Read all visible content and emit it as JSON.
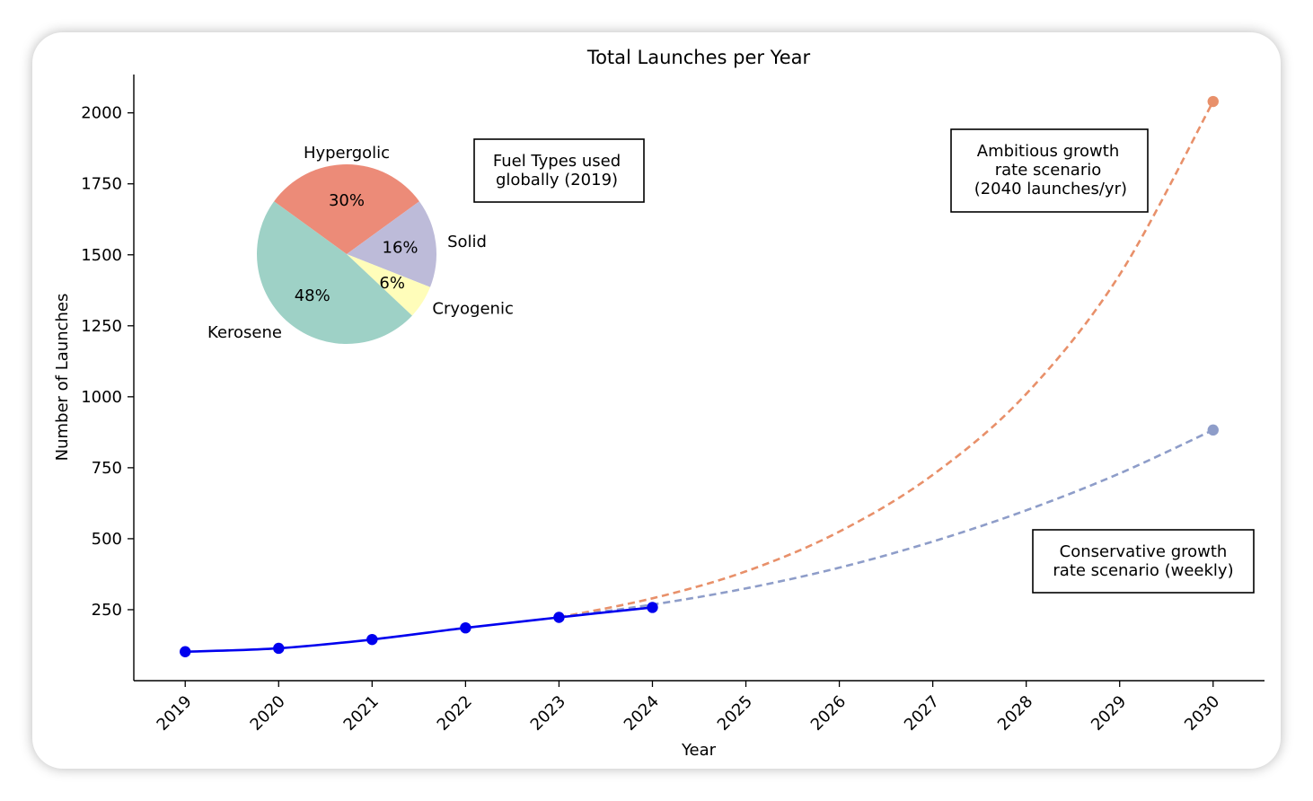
{
  "chart_data": [
    {
      "type": "line",
      "title": "Total Launches per Year",
      "xlabel": "Year",
      "ylabel": "Number of Launches",
      "x_ticks": [
        "2019",
        "2020",
        "2021",
        "2022",
        "2023",
        "2024",
        "2025",
        "2026",
        "2027",
        "2028",
        "2029",
        "2030"
      ],
      "y_ticks": [
        250,
        500,
        750,
        1000,
        1250,
        1500,
        1750,
        2000
      ],
      "xlim": [
        2018.45,
        2030.55
      ],
      "ylim": [
        0,
        2135
      ],
      "series": [
        {
          "style": "solid",
          "color": "#0000ee",
          "x": [
            2019,
            2020,
            2021,
            2022,
            2023,
            2024
          ],
          "values": [
            102,
            114,
            145,
            186,
            223,
            258
          ]
        },
        {
          "style": "dashed",
          "color": "#e8906a",
          "x": [
            2023,
            2024,
            2025,
            2026,
            2027,
            2028,
            2029,
            2030
          ],
          "values": [
            223,
            290,
            385,
            525,
            725,
            1010,
            1430,
            2040
          ]
        },
        {
          "style": "dashed",
          "color": "#8e9dc9",
          "x": [
            2023,
            2024,
            2025,
            2026,
            2027,
            2028,
            2029,
            2030
          ],
          "values": [
            223,
            268,
            325,
            398,
            490,
            600,
            730,
            883
          ]
        }
      ],
      "annotations": [
        {
          "id": "ambitious",
          "text": "Ambitious growth\nrate scenario\n (2040 launches/yr)"
        },
        {
          "id": "conservative",
          "text": "Conservative growth\nrate scenario (weekly)"
        }
      ],
      "grid": false,
      "legend": "none"
    },
    {
      "type": "pie",
      "title": "Fuel Types used\nglobally (2019)",
      "slices": [
        {
          "label": "Hypergolic",
          "value": 30,
          "pct": "30%",
          "color": "#ec8b78"
        },
        {
          "label": "Solid",
          "value": 16,
          "pct": "16%",
          "color": "#bdbbd9"
        },
        {
          "label": "Cryogenic",
          "value": 6,
          "pct": "6%",
          "color": "#fffdba"
        },
        {
          "label": "Kerosene",
          "value": 48,
          "pct": "48%",
          "color": "#9ed1c6"
        }
      ]
    }
  ]
}
